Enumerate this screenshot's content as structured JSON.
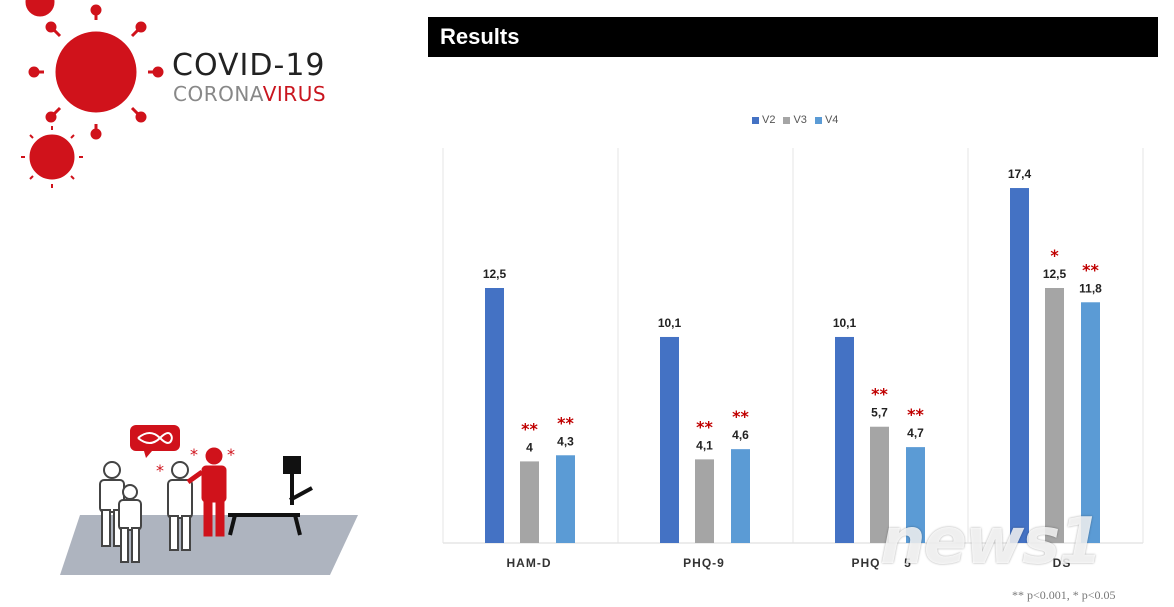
{
  "logo": {
    "title": "COVID-19",
    "sub_a": "CORONA",
    "sub_b": "VIRUS"
  },
  "header": {
    "title": "Results"
  },
  "colors": {
    "V2": "#4472c4",
    "V3": "#a5a5a5",
    "V4": "#5b9bd5",
    "star": "#c00000"
  },
  "chart_data": {
    "type": "bar",
    "categories": [
      "HAM-D",
      "PHQ-9",
      "PHQ-15",
      "DS"
    ],
    "visible_category_labels": [
      "HAM-D",
      "PHQ-9",
      "PHQ",
      "5",
      "DS"
    ],
    "series": [
      {
        "name": "V2",
        "values": [
          12.5,
          10.1,
          10.1,
          17.4
        ],
        "labels": [
          "12,5",
          "10,1",
          "10,1",
          "17,4"
        ],
        "stars": [
          "",
          "",
          "",
          ""
        ]
      },
      {
        "name": "V3",
        "values": [
          4,
          4.1,
          5.7,
          12.5
        ],
        "labels": [
          "4",
          "4,1",
          "5,7",
          "12,5"
        ],
        "stars": [
          "**",
          "**",
          "**",
          "*"
        ]
      },
      {
        "name": "V4",
        "values": [
          4.3,
          4.6,
          4.7,
          11.8
        ],
        "labels": [
          "4,3",
          "4,6",
          "4,7",
          "11,8"
        ],
        "stars": [
          "**",
          "**",
          "**",
          "**"
        ]
      }
    ],
    "ylim": [
      0,
      20
    ],
    "legend": "top-center",
    "grid": false
  },
  "footnote": "** p<0.001,  * p<0.05",
  "watermark": "news1"
}
